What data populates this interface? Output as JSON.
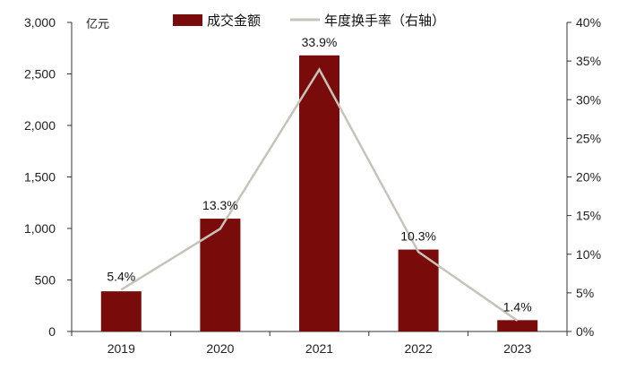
{
  "chart_data": {
    "type": "bar",
    "categories": [
      "2019",
      "2020",
      "2021",
      "2022",
      "2023"
    ],
    "series": [
      {
        "name": "成交金额",
        "type": "bar",
        "axis": "left",
        "values": [
          390,
          1095,
          2680,
          795,
          110
        ],
        "color": "#7a0b0b"
      },
      {
        "name": "年度换手率（右轴）",
        "type": "line",
        "axis": "right",
        "values": [
          5.4,
          13.3,
          33.9,
          10.3,
          1.4
        ],
        "color": "#c6c4b8"
      }
    ],
    "data_labels": [
      "5.4%",
      "13.3%",
      "33.9%",
      "10.3%",
      "1.4%"
    ],
    "ylabel": "亿元",
    "ylim": [
      0,
      3000
    ],
    "y_ticks": [
      "0",
      "500",
      "1,000",
      "1,500",
      "2,000",
      "2,500",
      "3,000"
    ],
    "y2lim": [
      0,
      40
    ],
    "y2_ticks": [
      "0%",
      "5%",
      "10%",
      "15%",
      "20%",
      "25%",
      "30%",
      "35%",
      "40%"
    ],
    "grid": false,
    "legend_position": "top-center"
  }
}
